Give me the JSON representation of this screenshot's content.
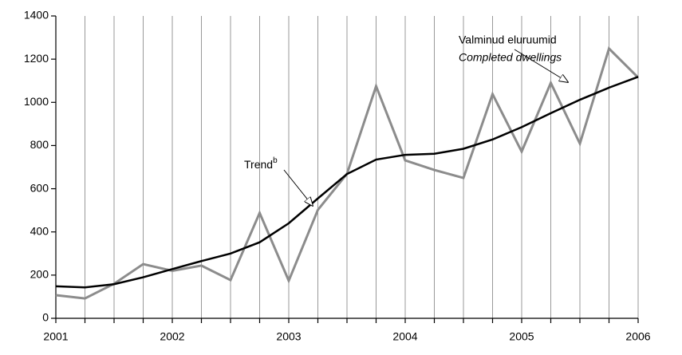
{
  "chart_data": {
    "type": "line",
    "x": [
      2001,
      2001.25,
      2001.5,
      2001.75,
      2002,
      2002.25,
      2002.5,
      2002.75,
      2003,
      2003.25,
      2003.5,
      2003.75,
      2004,
      2004.25,
      2004.5,
      2004.75,
      2005,
      2005.25,
      2005.5,
      2005.75,
      2006
    ],
    "series": [
      {
        "name": "Valminud eluruumid",
        "subname": "Completed dwellings",
        "color": "#8c8c8c",
        "values": [
          107,
          92,
          160,
          251,
          220,
          244,
          177,
          488,
          174,
          502,
          669,
          1075,
          731,
          687,
          650,
          1038,
          772,
          1090,
          809,
          1249,
          1115
        ]
      },
      {
        "name": "Trend",
        "name_sup": "b",
        "color": "#000000",
        "values": [
          148,
          143,
          158,
          190,
          228,
          265,
          300,
          352,
          440,
          555,
          668,
          735,
          757,
          762,
          785,
          828,
          885,
          950,
          1012,
          1068,
          1118
        ]
      }
    ],
    "xlim": [
      2001,
      2006
    ],
    "xticks": [
      2001,
      2002,
      2003,
      2004,
      2005,
      2006
    ],
    "ylim": [
      0,
      1400
    ],
    "yticks": [
      0,
      200,
      400,
      600,
      800,
      1000,
      1200,
      1400
    ],
    "grid": true
  }
}
